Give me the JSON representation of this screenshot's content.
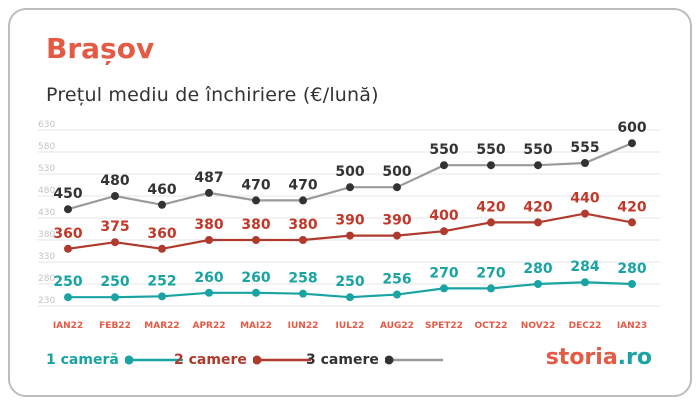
{
  "header": {
    "title": "Brașov",
    "subtitle": "Prețul mediu de închiriere (€/lună)"
  },
  "logo": {
    "name": "storia",
    "tld": ".ro"
  },
  "colors": {
    "accent": "#e45a45",
    "teal": "#1aa3a3",
    "red": "#b03a2e",
    "gray": "#9a9a9a",
    "dark": "#333333"
  },
  "chart_data": {
    "type": "line",
    "title": "Prețul mediu de închiriere (€/lună)",
    "categories": [
      "IAN22",
      "FEB22",
      "MAR22",
      "APR22",
      "MAI22",
      "IUN22",
      "IUL22",
      "AUG22",
      "SPET22",
      "OCT22",
      "NOV22",
      "DEC22",
      "IAN23"
    ],
    "yticks": [
      230,
      280,
      330,
      380,
      430,
      480,
      530,
      580,
      630
    ],
    "ylim": [
      230,
      630
    ],
    "grid": true,
    "legend_position": "bottom-left",
    "series": [
      {
        "name": "1 cameră",
        "color": "#1aa3a3",
        "values": [
          250,
          250,
          252,
          260,
          260,
          258,
          250,
          256,
          270,
          270,
          280,
          284,
          280
        ]
      },
      {
        "name": "2 camere",
        "color": "#b03a2e",
        "values": [
          360,
          375,
          360,
          380,
          380,
          380,
          390,
          390,
          400,
          420,
          420,
          440,
          420
        ]
      },
      {
        "name": "3 camere",
        "color": "#9a9a9a",
        "values": [
          450,
          480,
          460,
          487,
          470,
          470,
          500,
          500,
          550,
          550,
          550,
          555,
          600
        ]
      }
    ]
  }
}
